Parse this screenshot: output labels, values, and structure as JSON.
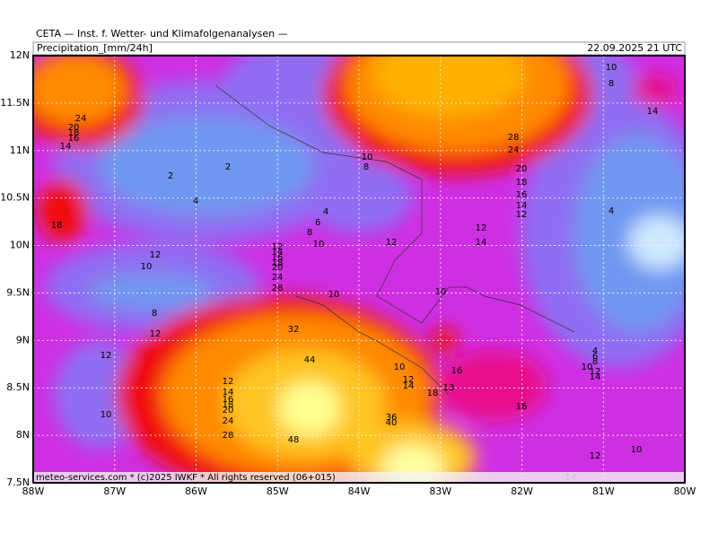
{
  "header": {
    "title": "CETA — Inst. f. Wetter- und Klimafolgenanalysen —",
    "product": "Precipitation_[mm/24h]",
    "valid": "22.09.2025 21 UTC"
  },
  "axes": {
    "lon_labels": [
      "88W",
      "87W",
      "86W",
      "85W",
      "84W",
      "83W",
      "82W",
      "81W",
      "80W"
    ],
    "lat_labels": [
      "12N",
      "11.5N",
      "11N",
      "10.5N",
      "10N",
      "9.5N",
      "9N",
      "8.5N",
      "8N",
      "7.5N"
    ]
  },
  "contour_labels": [
    "24",
    "20",
    "18",
    "16",
    "14",
    "18",
    "2",
    "2",
    "4",
    "4",
    "6",
    "8",
    "10",
    "10",
    "8",
    "12",
    "12",
    "10",
    "8",
    "12",
    "12",
    "10",
    "12",
    "14",
    "16",
    "18",
    "20",
    "24",
    "28",
    "10",
    "32",
    "44",
    "48",
    "12",
    "14",
    "16",
    "18",
    "20",
    "24",
    "28",
    "36",
    "40",
    "10",
    "12",
    "14",
    "18",
    "13",
    "16",
    "10",
    "12",
    "14",
    "28",
    "24",
    "20",
    "18",
    "16",
    "14",
    "12",
    "16",
    "14",
    "10",
    "8",
    "14",
    "4",
    "4",
    "6",
    "8",
    "10",
    "12",
    "14",
    "10",
    "12"
  ],
  "footer": "meteo-services.com * (c)2025 IWKF * All rights reserved (06+015)"
}
